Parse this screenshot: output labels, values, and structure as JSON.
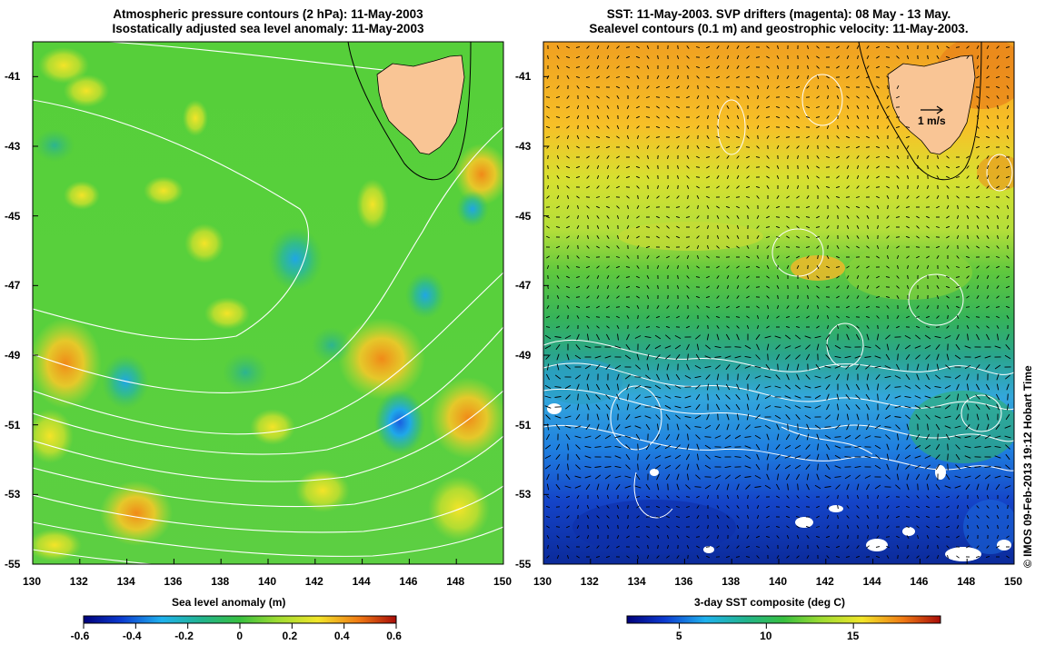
{
  "left_panel": {
    "title_line1": "Atmospheric pressure contours (2 hPa): 11-May-2003",
    "title_line2": "Isostatically adjusted sea level anomaly: 11-May-2003",
    "colorbar_label": "Sea level anomaly (m)",
    "colorbar_ticks": [
      "-0.6",
      "-0.4",
      "-0.2",
      "0",
      "0.2",
      "0.4",
      "0.6"
    ],
    "colorbar_range": [
      -0.6,
      0.6
    ]
  },
  "right_panel": {
    "title_line1": "SST: 11-May-2003. SVP drifters (magenta): 08 May - 13 May.",
    "title_line2": "Sealevel contours (0.1 m) and geostrophic velocity: 11-May-2003.",
    "colorbar_label": "3-day SST composite (deg C)",
    "colorbar_ticks": [
      "5",
      "10",
      "15"
    ],
    "colorbar_range": [
      2,
      20
    ],
    "vector_legend": "1 m/s"
  },
  "axes": {
    "lon_ticks": [
      "130",
      "132",
      "134",
      "136",
      "138",
      "140",
      "142",
      "144",
      "146",
      "148",
      "150"
    ],
    "lat_ticks": [
      "-41",
      "-43",
      "-45",
      "-47",
      "-49",
      "-51",
      "-53",
      "-55"
    ],
    "lon_range": [
      130,
      150
    ],
    "lat_range": [
      -55,
      -40
    ]
  },
  "credit": "© IMOS 09-Feb-2013 19:12 Hobart Time",
  "colors": {
    "land": "#f9c595",
    "contour": "#ffffff",
    "coastline": "#000000"
  }
}
